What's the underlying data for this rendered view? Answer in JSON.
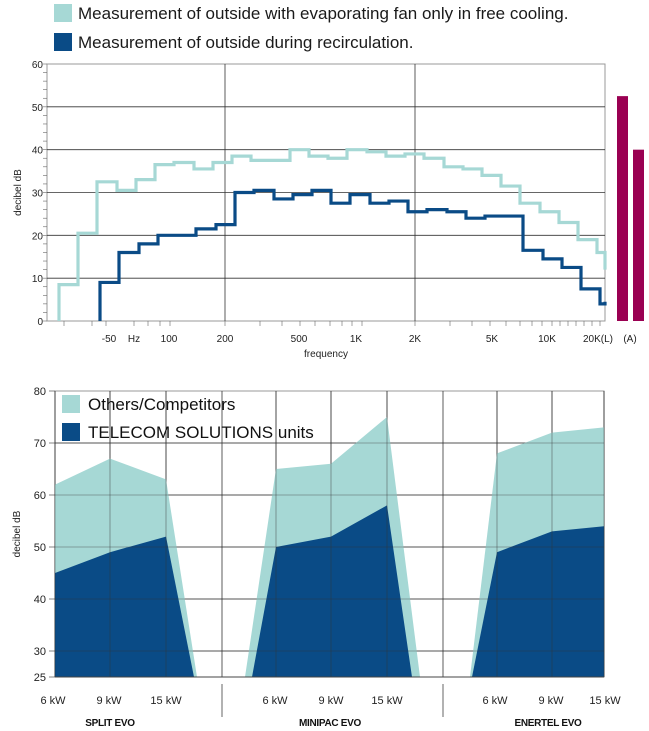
{
  "colors": {
    "light": "#a6d8d5",
    "dark": "#0a4b86",
    "magenta": "#9a0052",
    "grid": "#333333",
    "axis": "#444444"
  },
  "chart_data": [
    {
      "type": "line",
      "ylabel": "decibel dB",
      "xlabel": "frequency",
      "ylim": [
        0,
        60
      ],
      "yticks": [
        0,
        10,
        20,
        30,
        40,
        50,
        60
      ],
      "xtick_labels": [
        "-50",
        "Hz",
        "100",
        "200",
        "500",
        "1K",
        "2K",
        "5K",
        "10K",
        "20K(L)",
        "(A)"
      ],
      "grid": true,
      "legend_position": "top",
      "series": [
        {
          "name": "Measurement of outside with evaporating fan only in free cooling.",
          "values": [
            8.5,
            20.5,
            32.5,
            30.5,
            33,
            36.5,
            37,
            35.5,
            37,
            38.5,
            37.5,
            37.5,
            40,
            38.5,
            38,
            40,
            39.5,
            38.5,
            39,
            38,
            36,
            35.5,
            34,
            31.5,
            27.5,
            25.5,
            23,
            19,
            16,
            12
          ]
        },
        {
          "name": "Measurement of outside during recirculation.",
          "values": [
            null,
            9,
            16,
            18,
            20,
            20,
            21.5,
            22.5,
            30,
            30.5,
            28.5,
            29.5,
            30.5,
            27.5,
            29.5,
            27.5,
            28,
            25.5,
            26,
            25.5,
            24,
            24.5,
            24.5,
            16.5,
            14.5,
            12.5,
            7.5,
            4,
            4.5
          ]
        }
      ],
      "bars": [
        {
          "label": "(A)",
          "values": [
            52.5,
            40
          ]
        }
      ]
    },
    {
      "type": "area",
      "ylabel": "decibel dB",
      "ylim": [
        25,
        80
      ],
      "yticks": [
        25,
        30,
        40,
        50,
        60,
        70,
        80
      ],
      "grid": true,
      "legend_position": "top-left",
      "groups": [
        {
          "label": "SPLIT EVO",
          "categories": [
            "6 kW",
            "9 kW",
            "15 kW"
          ]
        },
        {
          "label": "MINIPAC EVO",
          "categories": [
            "6 kW",
            "9 kW",
            "15 kW"
          ]
        },
        {
          "label": "ENERTEL EVO",
          "categories": [
            "6 kW",
            "9 kW",
            "15 kW"
          ]
        }
      ],
      "series": [
        {
          "name": "Others/Competitors",
          "values": [
            [
              62,
              67,
              63
            ],
            [
              65,
              66,
              75
            ],
            [
              68,
              72,
              73
            ]
          ]
        },
        {
          "name": "TELECOM SOLUTIONS units",
          "values": [
            [
              45,
              49,
              52
            ],
            [
              50,
              52,
              58
            ],
            [
              49,
              53,
              54
            ]
          ]
        }
      ]
    }
  ]
}
